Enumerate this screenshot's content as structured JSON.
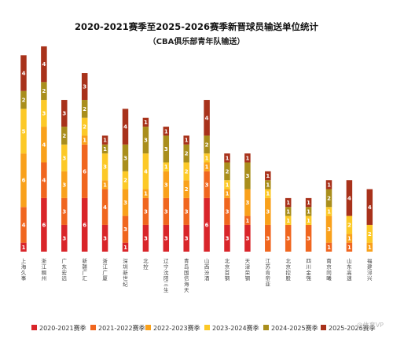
{
  "chart_data": {
    "type": "bar",
    "stacked": true,
    "title": "2020-2021赛季至2025-2026赛季新晋球员输送单位统计",
    "subtitle": "（CBA俱乐部青年队输送）",
    "categories": [
      "上海久事",
      "浙江稠州",
      "广东宏远",
      "新疆广汇",
      "浙江广厦",
      "深圳新世纪",
      "北控",
      "辽宁沈阳三生",
      "青岛国信海天",
      "山西汾酒",
      "北京首钢",
      "天津荣钢",
      "江苏肯帝亚",
      "北京控股",
      "四川金强",
      "南京同曦",
      "山东高速",
      "福建浔兴"
    ],
    "series": [
      {
        "name": "2020-2021赛季",
        "color": "#d9252a",
        "values": [
          1,
          6,
          3,
          6,
          3,
          1,
          3,
          3,
          3,
          6,
          3,
          3,
          0,
          0,
          0,
          0,
          0,
          0
        ]
      },
      {
        "name": "2021-2022赛季",
        "color": "#f0661f",
        "values": [
          4,
          4,
          3,
          6,
          4,
          3,
          3,
          3,
          3,
          3,
          3,
          1,
          3,
          3,
          3,
          1,
          1,
          0
        ]
      },
      {
        "name": "2022-2023赛季",
        "color": "#f9a11b",
        "values": [
          6,
          4,
          3,
          1,
          1,
          3,
          1,
          3,
          2,
          1,
          1,
          3,
          3,
          0,
          0,
          3,
          1,
          1
        ]
      },
      {
        "name": "2023-2024赛季",
        "color": "#fcc927",
        "values": [
          5,
          3,
          3,
          2,
          3,
          2,
          4,
          1,
          2,
          1,
          1,
          0,
          1,
          1,
          1,
          1,
          2,
          2
        ]
      },
      {
        "name": "2024-2025赛季",
        "color": "#a98e1c",
        "values": [
          2,
          2,
          2,
          2,
          1,
          3,
          3,
          3,
          2,
          2,
          2,
          3,
          1,
          1,
          1,
          2,
          0,
          0
        ]
      },
      {
        "name": "2025-2026赛季",
        "color": "#a8321b",
        "values": [
          4,
          4,
          3,
          3,
          1,
          4,
          1,
          1,
          1,
          4,
          1,
          1,
          1,
          1,
          1,
          1,
          4,
          4
        ]
      }
    ]
  },
  "watermark": "@体育VP"
}
